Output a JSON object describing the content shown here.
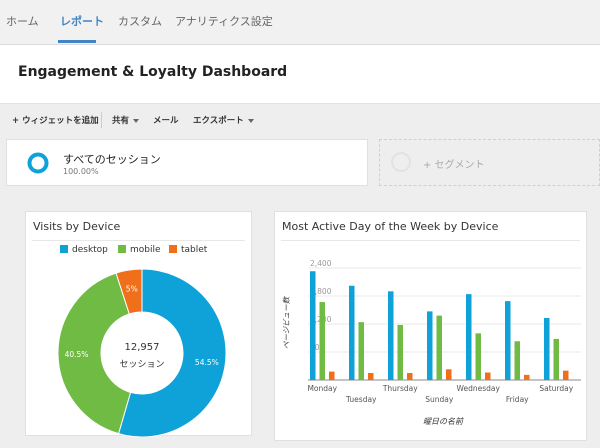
{
  "nav": {
    "tabs": [
      "ホーム",
      "レポート",
      "カスタム",
      "アナリティクス設定"
    ],
    "active_tab": "レポート"
  },
  "header": {
    "title": "Engagement & Loyalty Dashboard"
  },
  "toolbar": {
    "add_widget": "+ ウィジェットを追加",
    "share": "共有",
    "email": "メール",
    "export": "エクスポート"
  },
  "segment": {
    "name": "すべてのセッション",
    "percent": "100.00%"
  },
  "add_segment": {
    "label": "+ セグメント"
  },
  "colors": {
    "desktop": "#0ea2d8",
    "mobile": "#70bb44",
    "tablet": "#ef6f1a",
    "accent": "#4285c4"
  },
  "chart_data": [
    {
      "type": "pie",
      "title": "Visits by Device",
      "labels": [
        "desktop",
        "mobile",
        "tablet"
      ],
      "values": [
        54.5,
        40.5,
        5
      ],
      "slice_labels": [
        "54.5%",
        "40.5%",
        "5%"
      ],
      "center_value": "12,957",
      "center_label": "セッション",
      "legend": "top"
    },
    {
      "type": "bar",
      "title": "Most Active Day of the Week by Device",
      "categories": [
        "Monday",
        "Tuesday",
        "Thursday",
        "Sunday",
        "Wednesday",
        "Friday",
        "Saturday"
      ],
      "series": [
        {
          "name": "desktop",
          "values": [
            2330,
            2020,
            1900,
            1470,
            1840,
            1690,
            1330
          ]
        },
        {
          "name": "mobile",
          "values": [
            1670,
            1240,
            1180,
            1380,
            1000,
            830,
            880
          ]
        },
        {
          "name": "tablet",
          "values": [
            180,
            150,
            150,
            230,
            160,
            110,
            200
          ]
        }
      ],
      "ylabel": "ページビュー数",
      "xlabel": "曜日の名前",
      "ylim": [
        0,
        2700
      ],
      "yticks": [
        600,
        1200,
        1800,
        2400
      ],
      "ytick_labels": [
        "600",
        "1,200",
        "1,800",
        "2,400"
      ],
      "grid": true
    }
  ]
}
